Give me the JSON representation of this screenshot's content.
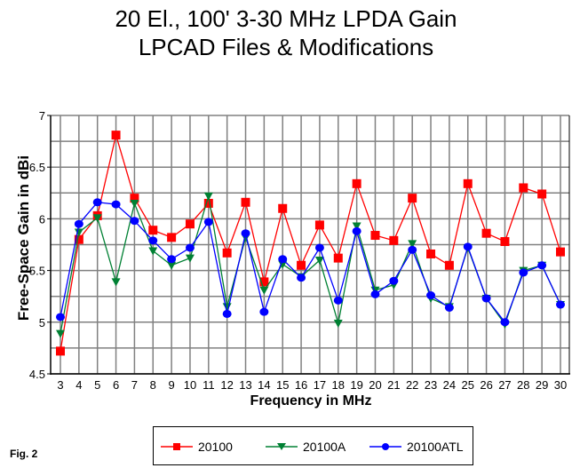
{
  "chart_data": {
    "type": "line",
    "title": "20 El., 100' 3-30 MHz LPDA Gain",
    "subtitle": "LPCAD Files & Modifications",
    "xlabel": "Frequency in MHz",
    "ylabel": "Free-Space Gain in dBi",
    "ylim": [
      4.5,
      7
    ],
    "yticks": [
      "4.5",
      "5",
      "5.5",
      "6",
      "6.5",
      "7"
    ],
    "xlim": [
      3,
      30
    ],
    "x": [
      3,
      4,
      5,
      6,
      7,
      8,
      9,
      10,
      11,
      12,
      13,
      14,
      15,
      16,
      17,
      18,
      19,
      20,
      21,
      22,
      23,
      24,
      25,
      26,
      27,
      28,
      29,
      30
    ],
    "grid": true,
    "legend_position": "bottom",
    "series": [
      {
        "name": "20100",
        "color": "#ff0000",
        "marker": "square",
        "values": [
          4.72,
          5.8,
          6.03,
          6.81,
          6.2,
          5.89,
          5.82,
          5.95,
          6.15,
          5.67,
          6.16,
          5.39,
          6.1,
          5.55,
          5.94,
          5.62,
          6.34,
          5.84,
          5.79,
          6.2,
          5.66,
          5.55,
          6.34,
          5.86,
          5.78,
          6.3,
          6.24,
          5.68
        ]
      },
      {
        "name": "20100A",
        "color": "#008033",
        "marker": "triangle-down",
        "values": [
          4.89,
          5.87,
          6.01,
          5.39,
          6.15,
          5.69,
          5.55,
          5.62,
          6.22,
          5.15,
          5.82,
          5.31,
          5.56,
          5.44,
          5.6,
          4.99,
          5.93,
          5.31,
          5.36,
          5.76,
          5.23,
          5.15,
          5.72,
          5.23,
          4.98,
          5.5,
          5.55,
          5.17
        ]
      },
      {
        "name": "20100ATL",
        "color": "#0000ff",
        "marker": "circle",
        "values": [
          5.05,
          5.95,
          6.16,
          6.14,
          5.98,
          5.79,
          5.61,
          5.72,
          5.97,
          5.08,
          5.86,
          5.1,
          5.61,
          5.43,
          5.72,
          5.21,
          5.88,
          5.27,
          5.4,
          5.7,
          5.26,
          5.14,
          5.73,
          5.23,
          5.0,
          5.48,
          5.55,
          5.17
        ]
      }
    ]
  },
  "figure_label": "Fig. 2"
}
